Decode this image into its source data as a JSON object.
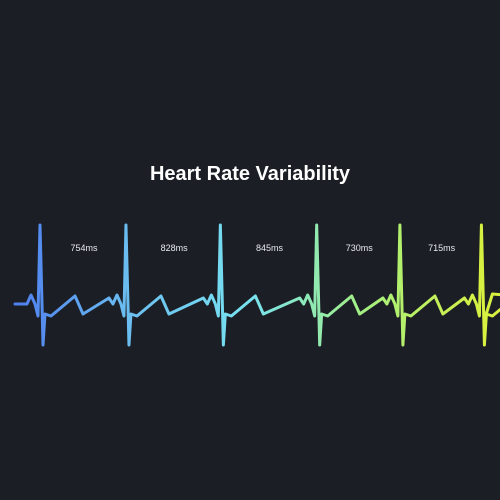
{
  "chart_data": {
    "type": "line",
    "title": "Heart Rate Variability",
    "xlabel": "",
    "ylabel": "",
    "grid": false,
    "beats": [
      1,
      2,
      3,
      4,
      5,
      6
    ],
    "rr_intervals": [
      {
        "label": "754ms",
        "value_ms": 754
      },
      {
        "label": "828ms",
        "value_ms": 828
      },
      {
        "label": "845ms",
        "value_ms": 845
      },
      {
        "label": "730ms",
        "value_ms": 730
      },
      {
        "label": "715ms",
        "value_ms": 715
      }
    ],
    "gradient_colors": [
      "#4f7ff0",
      "#6cc0f0",
      "#78e2f0",
      "#a5f07e",
      "#d8f040"
    ]
  }
}
